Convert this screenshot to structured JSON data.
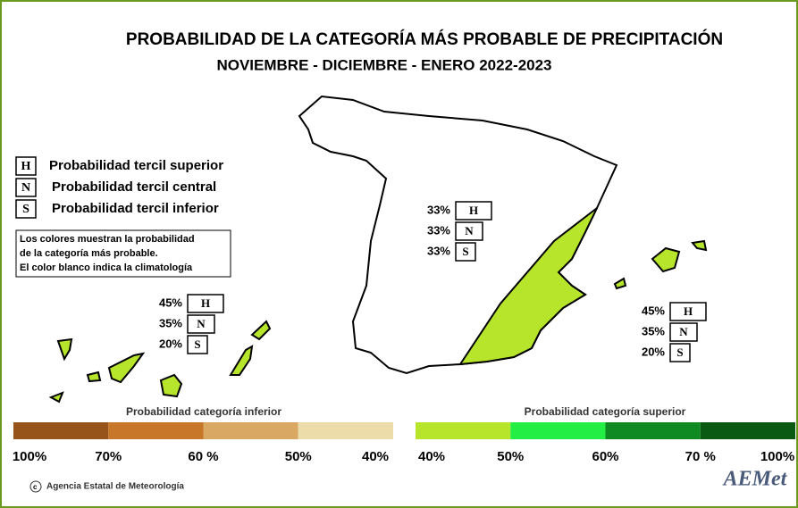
{
  "header": {
    "title": "PROBABILIDAD DE LA  CATEGORÍA MÁS PROBABLE DE PRECIPITACIÓN",
    "subtitle": "NOVIEMBRE - DICIEMBRE - ENERO  2022-2023"
  },
  "legend": {
    "items": [
      {
        "key": "H",
        "label": "Probabilidad  tercil superior"
      },
      {
        "key": "N",
        "label": "Probabilidad  tercil central"
      },
      {
        "key": "S",
        "label": "Probabilidad  tercil inferior"
      }
    ],
    "note": [
      "Los colores muestran la probabilidad",
      "de la categoría más probable.",
      "El color blanco indica la climatología"
    ]
  },
  "map": {
    "peninsula": [
      {
        "value": "33%",
        "key": "H"
      },
      {
        "value": "33%",
        "key": "N"
      },
      {
        "value": "33%",
        "key": "S"
      }
    ],
    "canarias": [
      {
        "value": "45%",
        "key": "H"
      },
      {
        "value": "35%",
        "key": "N"
      },
      {
        "value": "20%",
        "key": "S"
      }
    ],
    "baleares": [
      {
        "value": "45%",
        "key": "H"
      },
      {
        "value": "35%",
        "key": "N"
      },
      {
        "value": "20%",
        "key": "S"
      }
    ]
  },
  "colorbar": {
    "inferior": {
      "title": "Probabilidad categoría inferior",
      "colors": [
        "#97541a",
        "#c7762a",
        "#d9a862",
        "#ecdcaa"
      ],
      "labels": [
        "100%",
        "70%",
        "60 %",
        "50%",
        "40%"
      ]
    },
    "superior": {
      "title": "Probabilidad categoría superior",
      "colors": [
        "#b6e52c",
        "#22ee44",
        "#0f8a22",
        "#0b5a14"
      ],
      "labels": [
        "40%",
        "50%",
        "60%",
        "70 %",
        "100%"
      ]
    }
  },
  "footer": {
    "credit": "Agencia Estatal de Meteorología",
    "logo": "AEMet"
  }
}
